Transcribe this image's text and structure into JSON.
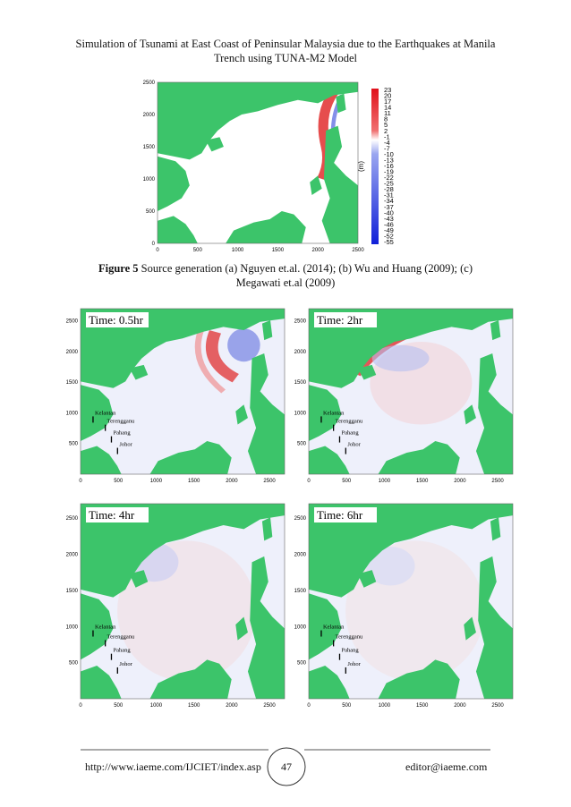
{
  "header": {
    "lines": [
      "Simulation of Tsunami at East Coast of Peninsular Malaysia due to the Earthquakes at Manila",
      "Trench using TUNA-M2 Model"
    ]
  },
  "figure": {
    "label": "Figure 5",
    "caption": "Source generation (a) Nguyen et.al. (2014); (b) Wu and Huang (2009); (c) Megawati et.al (2009)",
    "source_map": {
      "yticks": [
        "0",
        "500",
        "1000",
        "1500",
        "2000",
        "2500"
      ],
      "xticks": [
        "0",
        "500",
        "1000",
        "1500",
        "2000",
        "2500"
      ],
      "colorbar": {
        "labels": [
          "23",
          "20",
          "17",
          "14",
          "11",
          "8",
          "5",
          "2",
          "-1",
          "-4",
          "-7",
          "-10",
          "-13",
          "-16",
          "-19",
          "-22",
          "-25",
          "-28",
          "-31",
          "-34",
          "-37",
          "-40",
          "-43",
          "-46",
          "-49",
          "-52",
          "-55"
        ],
        "unit": "(m)"
      }
    },
    "panels": [
      {
        "time": "Time: 0.5hr",
        "yticks": [
          "500",
          "1000",
          "1500",
          "2000",
          "2500"
        ],
        "xticks": [
          "0",
          "500",
          "1000",
          "1500",
          "2000",
          "2500"
        ],
        "places": [
          "Kelantan",
          "Terengganu",
          "Pahang",
          "Johor"
        ]
      },
      {
        "time": "Time: 2hr",
        "yticks": [
          "500",
          "1000",
          "1500",
          "2000",
          "2500"
        ],
        "xticks": [
          "0",
          "500",
          "1000",
          "1500",
          "2000",
          "2500"
        ],
        "places": [
          "Kelantan",
          "Terengganu",
          "Pahang",
          "Johor"
        ]
      },
      {
        "time": "Time: 4hr",
        "yticks": [
          "500",
          "1000",
          "1500",
          "2000",
          "2500"
        ],
        "xticks": [
          "0",
          "500",
          "1000",
          "1500",
          "2000",
          "2500"
        ],
        "places": [
          "Kelantan",
          "Terengganu",
          "Pahang",
          "Johor"
        ]
      },
      {
        "time": "Time: 6hr",
        "yticks": [
          "500",
          "1000",
          "1500",
          "2000",
          "2500"
        ],
        "xticks": [
          "0",
          "500",
          "1000",
          "1500",
          "2000",
          "2500"
        ],
        "places": [
          "Kelantan",
          "Terengganu",
          "Pahang",
          "Johor"
        ]
      }
    ]
  },
  "footer": {
    "url": "http://www.iaeme.com/IJCIET/index.asp",
    "page": "47",
    "email": "editor@iaeme.com"
  }
}
